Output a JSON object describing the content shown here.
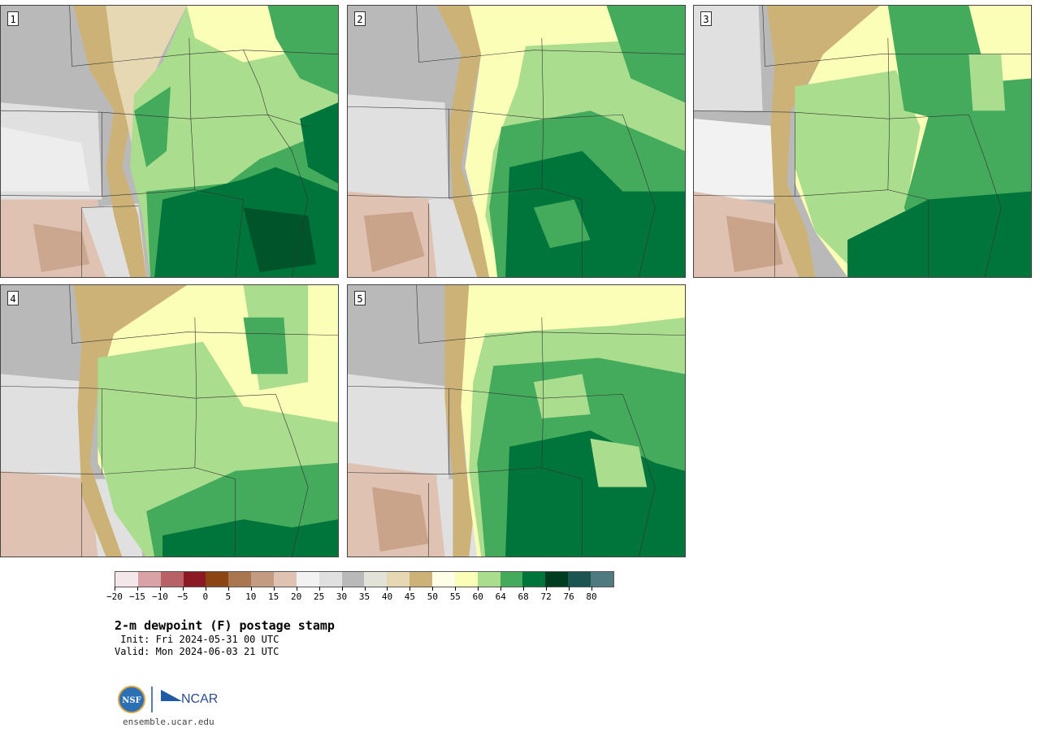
{
  "panels": [
    {
      "label": "1"
    },
    {
      "label": "2"
    },
    {
      "label": "3"
    },
    {
      "label": "4"
    },
    {
      "label": "5"
    }
  ],
  "legend": {
    "tick_labels": [
      "−20",
      "−15",
      "−10",
      "−5",
      "0",
      "5",
      "10",
      "15",
      "20",
      "25",
      "30",
      "35",
      "40",
      "45",
      "50",
      "55",
      "60",
      "64",
      "68",
      "72",
      "76",
      "80"
    ],
    "colors": [
      "#f3e7ea",
      "#d9a2a6",
      "#b86166",
      "#8c1a24",
      "#8b4513",
      "#aa7650",
      "#c39b80",
      "#dfc2b2",
      "#f2f2f2",
      "#e0e0e0",
      "#b9b9b9",
      "#e3e2d8",
      "#e6d8b2",
      "#cdb277",
      "#fefee6",
      "#fbfeb6",
      "#abdd8f",
      "#44aa5c",
      "#00753b",
      "#003d20",
      "#1b5451",
      "#4f7a80"
    ]
  },
  "title": "2-m dewpoint (F) postage stamp",
  "init": " Init: Fri 2024-05-31 00 UTC",
  "valid": "Valid: Mon 2024-06-03 21 UTC",
  "logo": {
    "nsf_text": "NSF",
    "ncar_text": "NCAR"
  },
  "footer_url": "ensemble.ucar.edu"
}
